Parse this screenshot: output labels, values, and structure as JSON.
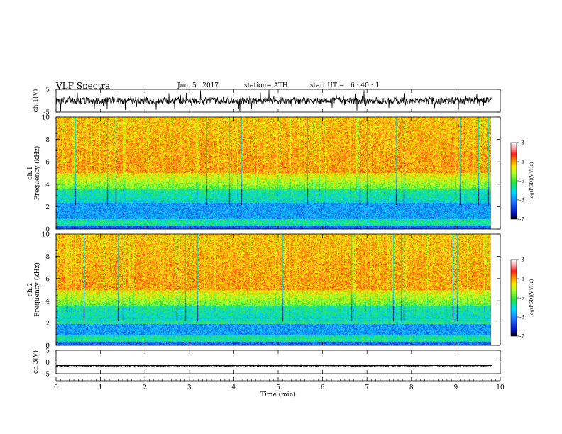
{
  "header": {
    "title": "VLF Spectra",
    "date": "Jun. 5 , 2017",
    "station": "station= ATH",
    "start": "start UT =   6 : 40 : 1"
  },
  "chart_data": [
    {
      "type": "line",
      "panel": "ch1-waveform",
      "ylabel": "ch.1(V)",
      "ylim": [
        -5,
        5
      ],
      "yticks": [
        "5",
        "-5"
      ],
      "xlim": [
        0,
        10
      ],
      "series_color": "#000000",
      "baseline": 0,
      "description_values": {
        "typical_amplitude": 1.5,
        "max_spike": 4
      }
    },
    {
      "type": "heatmap",
      "panel": "ch1-spectrogram",
      "ylabel": "ch.1\nFrequency (kHz)",
      "ylabel_line1": "ch.1",
      "ylabel_line2": "Frequency (kHz)",
      "ylim": [
        0,
        10
      ],
      "yticks": [
        "0",
        "2",
        "4",
        "6",
        "8",
        "10"
      ],
      "xlim": [
        0,
        9.8
      ],
      "colorbar": {
        "range": [
          -7,
          -3
        ],
        "ticks": [
          "-3",
          "-4",
          "-5",
          "-6",
          "-7"
        ],
        "label": "log(PSD)(V²/Hz)"
      }
    },
    {
      "type": "heatmap",
      "panel": "ch2-spectrogram",
      "ylabel": "ch.2\nFrequency (kHz)",
      "ylabel_line1": "ch.2",
      "ylabel_line2": "Frequency (kHz)",
      "ylim": [
        0,
        10
      ],
      "yticks": [
        "0",
        "2",
        "4",
        "6",
        "8",
        "10"
      ],
      "xlim": [
        0,
        9.8
      ],
      "colorbar": {
        "range": [
          -7,
          -3
        ],
        "ticks": [
          "-3",
          "-4",
          "-5",
          "-6",
          "-7"
        ],
        "label": "log(PSD)(V²/Hz)"
      }
    },
    {
      "type": "line",
      "panel": "ch3-waveform",
      "ylabel": "ch.3(V)",
      "ylim": [
        -5,
        5
      ],
      "yticks": [
        "5",
        "0",
        "-5"
      ],
      "xlim": [
        0,
        10
      ],
      "series_color": "#000000",
      "baseline": -1.5
    }
  ],
  "xaxis": {
    "label": "Time  (min)",
    "ticks": [
      "0",
      "1",
      "2",
      "3",
      "4",
      "5",
      "6",
      "7",
      "8",
      "9",
      "10"
    ]
  },
  "colors": {
    "scale": [
      "#ffffff",
      "#ff9a9a",
      "#ff1e1e",
      "#ff8a00",
      "#ffe800",
      "#b0ff2a",
      "#24e840",
      "#00d8ff",
      "#1e78ff",
      "#0818c8",
      "#000000"
    ]
  }
}
